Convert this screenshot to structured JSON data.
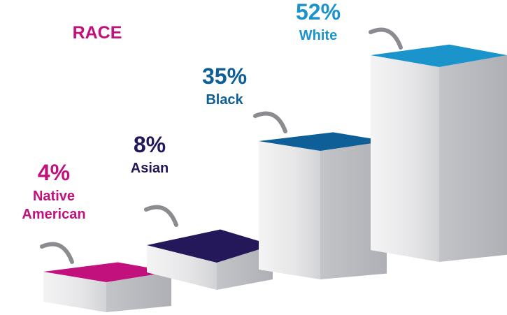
{
  "chart_data": {
    "type": "bar",
    "title": "RACE",
    "categories": [
      "Native American",
      "Asian",
      "Black",
      "White"
    ],
    "category_lines": [
      [
        "Native",
        "American"
      ],
      [
        "Asian"
      ],
      [
        "Black"
      ],
      [
        "White"
      ]
    ],
    "values": [
      4,
      8,
      35,
      52
    ],
    "value_labels": [
      "4%",
      "8%",
      "35%",
      "52%"
    ],
    "unit": "%",
    "colors": [
      "#c2117d",
      "#24185a",
      "#0e5f98",
      "#1b94cc"
    ],
    "title_color": "#c2117d",
    "style": "3d-blocks"
  }
}
